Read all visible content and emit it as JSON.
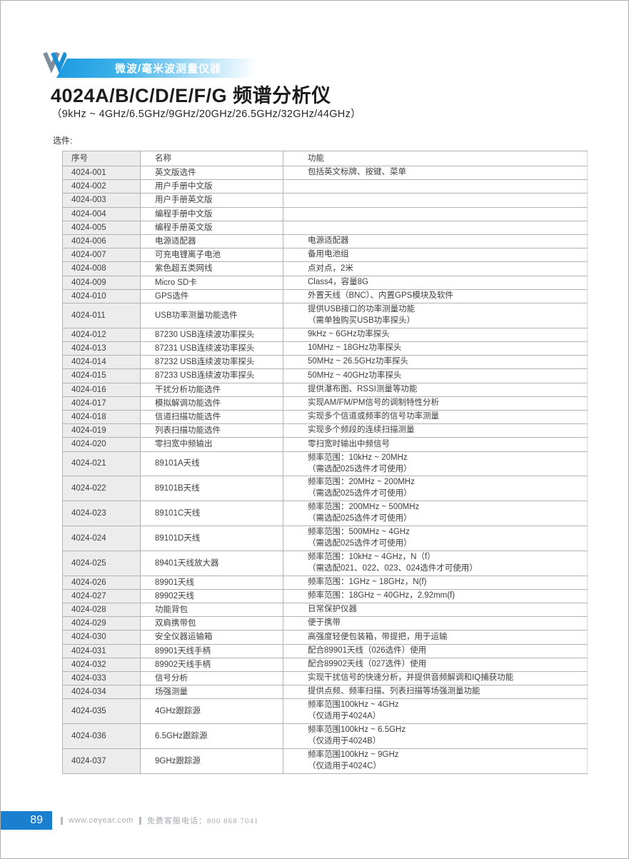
{
  "page": {
    "banner": "微波/毫米波测量仪器",
    "title": "4024A/B/C/D/E/F/G 频谱分析仪",
    "subtitle": "（9kHz ~ 4GHz/6.5GHz/9GHz/20GHz/26.5GHz/32GHz/44GHz）",
    "section_label": "选件:"
  },
  "table": {
    "headers": [
      "序号",
      "名称",
      "功能"
    ],
    "rows": [
      {
        "id": "4024-001",
        "name": "英文版选件",
        "func": [
          "包括英文标牌、按键、菜单"
        ]
      },
      {
        "id": "4024-002",
        "name": "用户手册中文版",
        "func": []
      },
      {
        "id": "4024-003",
        "name": "用户手册英文版",
        "func": []
      },
      {
        "id": "4024-004",
        "name": "编程手册中文版",
        "func": []
      },
      {
        "id": "4024-005",
        "name": "编程手册英文版",
        "func": []
      },
      {
        "id": "4024-006",
        "name": "电源适配器",
        "func": [
          "电源适配器"
        ]
      },
      {
        "id": "4024-007",
        "name": "可充电锂离子电池",
        "func": [
          "备用电池组"
        ]
      },
      {
        "id": "4024-008",
        "name": "紫色超五类网线",
        "func": [
          "点对点，2米"
        ]
      },
      {
        "id": "4024-009",
        "name": "Micro SD卡",
        "func": [
          "Class4，容量8G"
        ]
      },
      {
        "id": "4024-010",
        "name": "GPS选件",
        "func": [
          "外置天线（BNC）、内置GPS模块及软件"
        ]
      },
      {
        "id": "4024-011",
        "name": "USB功率测量功能选件",
        "func": [
          "提供USB接口的功率测量功能",
          "（需单独购买USB功率探头）"
        ]
      },
      {
        "id": "4024-012",
        "name": "87230 USB连续波功率探头",
        "func": [
          "9kHz ~ 6GHz功率探头"
        ]
      },
      {
        "id": "4024-013",
        "name": "87231 USB连续波功率探头",
        "func": [
          "10MHz ~ 18GHz功率探头"
        ]
      },
      {
        "id": "4024-014",
        "name": "87232 USB连续波功率探头",
        "func": [
          "50MHz ~ 26.5GHz功率探头"
        ]
      },
      {
        "id": "4024-015",
        "name": "87233 USB连续波功率探头",
        "func": [
          "50MHz ~ 40GHz功率探头"
        ]
      },
      {
        "id": "4024-016",
        "name": "干扰分析功能选件",
        "func": [
          "提供瀑布图、RSSI测量等功能"
        ]
      },
      {
        "id": "4024-017",
        "name": "模拟解调功能选件",
        "func": [
          "实现AM/FM/PM信号的调制特性分析"
        ]
      },
      {
        "id": "4024-018",
        "name": "信道扫描功能选件",
        "func": [
          "实现多个信道或频率的信号功率测量"
        ]
      },
      {
        "id": "4024-019",
        "name": "列表扫描功能选件",
        "func": [
          "实现多个频段的连续扫描测量"
        ]
      },
      {
        "id": "4024-020",
        "name": "零扫宽中频输出",
        "func": [
          "零扫宽时输出中频信号"
        ]
      },
      {
        "id": "4024-021",
        "name": "89101A天线",
        "func": [
          "频率范围：10kHz ~ 20MHz",
          "（需选配025选件才可使用）"
        ]
      },
      {
        "id": "4024-022",
        "name": "89101B天线",
        "func": [
          "频率范围：20MHz ~ 200MHz",
          "（需选配025选件才可使用）"
        ]
      },
      {
        "id": "4024-023",
        "name": "89101C天线",
        "func": [
          "频率范围：200MHz ~ 500MHz",
          "（需选配025选件才可使用）"
        ]
      },
      {
        "id": "4024-024",
        "name": "89101D天线",
        "func": [
          "频率范围：500MHz ~ 4GHz",
          "（需选配025选件才可使用）"
        ]
      },
      {
        "id": "4024-025",
        "name": "89401天线放大器",
        "func": [
          "频率范围：10kHz ~ 4GHz，N（f）",
          "（需选配021、022、023、024选件才可使用）"
        ]
      },
      {
        "id": "4024-026",
        "name": "89901天线",
        "func": [
          "频率范围：1GHz ~ 18GHz，N(f)"
        ]
      },
      {
        "id": "4024-027",
        "name": "89902天线",
        "func": [
          "频率范围：18GHz ~ 40GHz，2.92mm(f)"
        ]
      },
      {
        "id": "4024-028",
        "name": "功能背包",
        "func": [
          "日常保护仪器"
        ]
      },
      {
        "id": "4024-029",
        "name": "双肩携带包",
        "func": [
          "便于携带"
        ]
      },
      {
        "id": "4024-030",
        "name": "安全仪器运输箱",
        "func": [
          "高强度轻便包装箱，带提把，用于运输"
        ]
      },
      {
        "id": "4024-031",
        "name": "89901天线手柄",
        "func": [
          "配合89901天线（026选件）使用"
        ]
      },
      {
        "id": "4024-032",
        "name": "89902天线手柄",
        "func": [
          "配合89902天线（027选件）使用"
        ]
      },
      {
        "id": "4024-033",
        "name": "信号分析",
        "func": [
          "实现干扰信号的快速分析，并提供音频解调和IQ捕获功能"
        ]
      },
      {
        "id": "4024-034",
        "name": "场强测量",
        "func": [
          "提供点频、频率扫描、列表扫描等场强测量功能"
        ]
      },
      {
        "id": "4024-035",
        "name": "4GHz跟踪源",
        "func": [
          "频率范围100kHz ~ 4GHz",
          "（仅适用于4024A）"
        ]
      },
      {
        "id": "4024-036",
        "name": "6.5GHz跟踪源",
        "func": [
          "频率范围100kHz ~ 6.5GHz",
          "（仅适用于4024B）"
        ]
      },
      {
        "id": "4024-037",
        "name": "9GHz跟踪源",
        "func": [
          "频率范围100kHz ~ 9GHz",
          "（仅适用于4024C）"
        ]
      }
    ]
  },
  "footer": {
    "page_number": "89",
    "website": "www.ceyear.com",
    "hotline": "免费客服电话：800 868 7041"
  },
  "colors": {
    "banner_blue": "#1b9ae0",
    "footer_box_blue": "#1b7fd0",
    "table_col1_bg": "#ececec",
    "table_border": "#b3b3b3",
    "logo_gray": "#7d8d99",
    "logo_blue": "#1b8fd8"
  }
}
